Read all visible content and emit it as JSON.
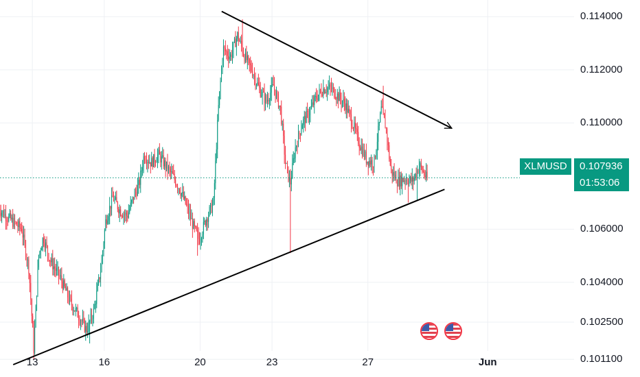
{
  "chart_data": {
    "type": "candlestick",
    "symbol": "XLMUSD",
    "last_price": "0.107936",
    "countdown": "01:53:06",
    "y_ticks": [
      "0.114000",
      "0.112000",
      "0.110000",
      "0.106000",
      "0.104000",
      "0.102500",
      "0.101100"
    ],
    "x_ticks": [
      {
        "label": "13",
        "day": 13
      },
      {
        "label": "16",
        "day": 16
      },
      {
        "label": "20",
        "day": 20
      },
      {
        "label": "23",
        "day": 23
      },
      {
        "label": "27",
        "day": 27
      },
      {
        "label": "Jun",
        "day": 32
      }
    ],
    "ylim": [
      0.1009,
      0.1145
    ],
    "colors": {
      "up": "#089981",
      "down": "#f23645",
      "trendline": "#000000",
      "last_price_line": "#089981"
    },
    "trendlines": [
      {
        "name": "upper",
        "points": [
          [
            20.9,
            0.1142
          ],
          [
            30.5,
            0.1098
          ]
        ],
        "arrow": true
      },
      {
        "name": "lower",
        "points": [
          [
            12.2,
            0.1009
          ],
          [
            30.2,
            0.1075
          ]
        ],
        "arrow": false
      }
    ],
    "price_path": [
      [
        11.6,
        0.1068
      ],
      [
        12.2,
        0.1063
      ],
      [
        12.6,
        0.106
      ],
      [
        12.9,
        0.1045
      ],
      [
        13.1,
        0.1015
      ],
      [
        13.3,
        0.105
      ],
      [
        13.5,
        0.1057
      ],
      [
        13.8,
        0.1048
      ],
      [
        14.2,
        0.1042
      ],
      [
        14.6,
        0.1033
      ],
      [
        15.0,
        0.1027
      ],
      [
        15.3,
        0.1022
      ],
      [
        15.6,
        0.1029
      ],
      [
        15.9,
        0.1045
      ],
      [
        16.1,
        0.1063
      ],
      [
        16.4,
        0.1072
      ],
      [
        16.7,
        0.1067
      ],
      [
        17.0,
        0.1065
      ],
      [
        17.3,
        0.1073
      ],
      [
        17.5,
        0.1077
      ],
      [
        17.7,
        0.1088
      ],
      [
        18.0,
        0.1085
      ],
      [
        18.3,
        0.1088
      ],
      [
        18.6,
        0.1084
      ],
      [
        18.9,
        0.108
      ],
      [
        19.2,
        0.1075
      ],
      [
        19.5,
        0.1068
      ],
      [
        19.8,
        0.106
      ],
      [
        20.0,
        0.1056
      ],
      [
        20.3,
        0.1064
      ],
      [
        20.6,
        0.107
      ],
      [
        20.8,
        0.1105
      ],
      [
        21.0,
        0.1128
      ],
      [
        21.3,
        0.1125
      ],
      [
        21.6,
        0.1133
      ],
      [
        21.9,
        0.1125
      ],
      [
        22.2,
        0.112
      ],
      [
        22.5,
        0.1113
      ],
      [
        22.8,
        0.1108
      ],
      [
        23.1,
        0.1114
      ],
      [
        23.4,
        0.1105
      ],
      [
        23.6,
        0.1085
      ],
      [
        23.8,
        0.1077
      ],
      [
        24.0,
        0.109
      ],
      [
        24.3,
        0.11
      ],
      [
        24.6,
        0.1104
      ],
      [
        24.9,
        0.111
      ],
      [
        25.2,
        0.1113
      ],
      [
        25.5,
        0.1113
      ],
      [
        25.8,
        0.111
      ],
      [
        26.1,
        0.1107
      ],
      [
        26.4,
        0.11
      ],
      [
        26.7,
        0.1092
      ],
      [
        27.0,
        0.1086
      ],
      [
        27.3,
        0.1085
      ],
      [
        27.6,
        0.1105
      ],
      [
        27.8,
        0.1098
      ],
      [
        28.0,
        0.1082
      ],
      [
        28.3,
        0.1078
      ],
      [
        28.6,
        0.1079
      ],
      [
        28.9,
        0.1078
      ],
      [
        29.2,
        0.1084
      ],
      [
        29.5,
        0.1079
      ]
    ],
    "wick_spikes": [
      {
        "day": 13.05,
        "low": 0.1011
      },
      {
        "day": 15.4,
        "low": 0.1017
      },
      {
        "day": 19.9,
        "low": 0.105
      },
      {
        "day": 23.75,
        "low": 0.1051
      },
      {
        "day": 28.7,
        "low": 0.107
      },
      {
        "day": 29.05,
        "low": 0.1071
      },
      {
        "day": 21.75,
        "high": 0.1139
      },
      {
        "day": 27.65,
        "high": 0.1114
      }
    ],
    "markers": [
      {
        "icon": "us-flag-icon",
        "day": 29.55
      },
      {
        "icon": "us-flag-icon",
        "day": 30.55
      }
    ]
  }
}
